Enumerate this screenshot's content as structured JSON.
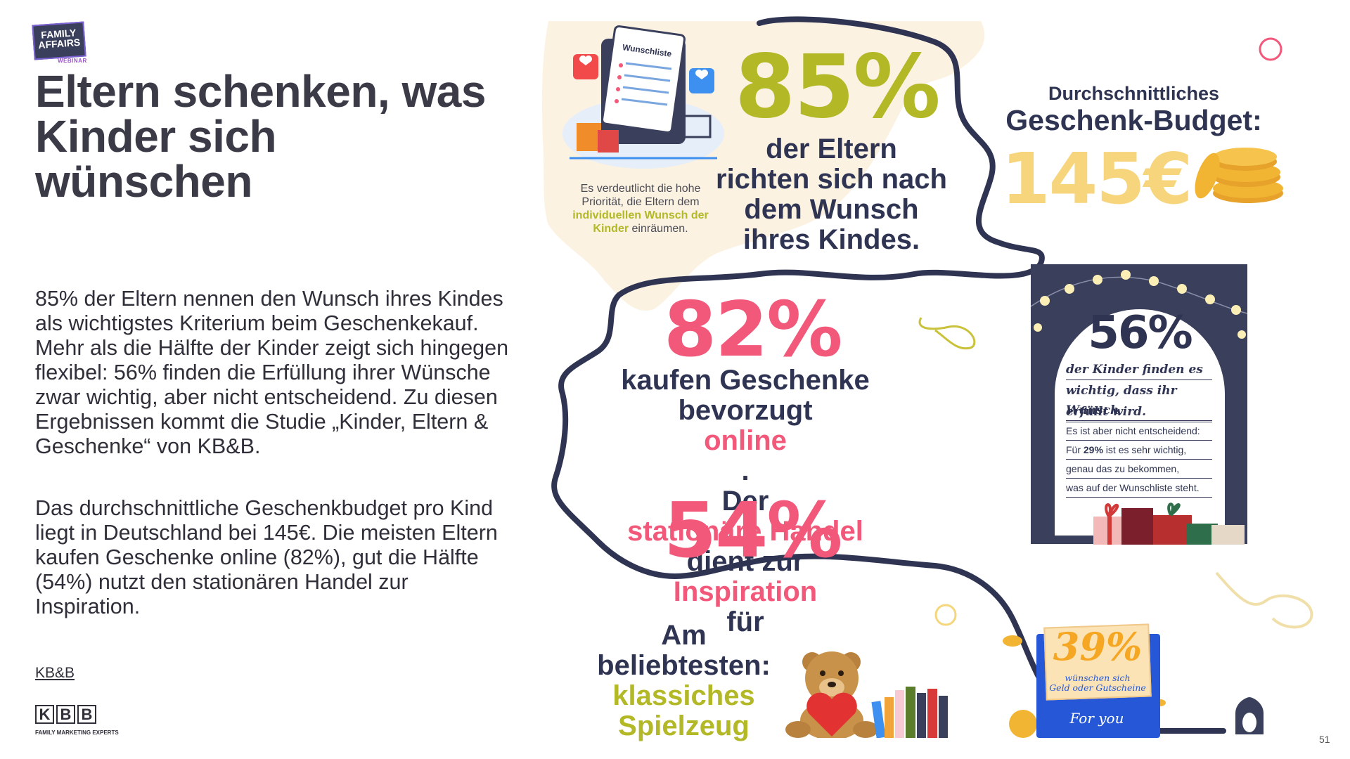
{
  "branding": {
    "family_affairs_line1": "FAMILY",
    "family_affairs_line2": "AFFAIRS",
    "family_affairs_sub": "WEBINAR",
    "kbb_letters": [
      "K",
      "B",
      "B"
    ],
    "kbb_tagline": "FAMILY MARKETING EXPERTS"
  },
  "title": {
    "line1": "Eltern schenken, was",
    "line2": "Kinder sich",
    "line3": "wünschen"
  },
  "body": {
    "paragraph1": "85% der Eltern nennen den Wunsch ihres Kindes als wichtigstes Kriterium beim Geschenkekauf. Mehr als die Hälfte der Kinder zeigt sich hingegen flexibel: 56% finden die Erfüllung ihrer Wünsche zwar wichtig, aber nicht entscheidend. Zu diesen Ergebnissen kommt die Studie „Kinder, Eltern & Geschenke“ von KB&B.",
    "paragraph2": "Das durchschnittliche Geschenkbudget pro Kind liegt in Deutschland bei 145€. Die meisten Eltern kaufen Geschenke online (82%), gut die Hälfte (54%) nutzt den stationären Handel zur Inspiration.",
    "source_link": "KB&B"
  },
  "infographic": {
    "wishlist_label": "Wunschliste",
    "note": {
      "part1": "Es verdeutlicht die hohe Priorität, die Eltern dem ",
      "highlight": "individuellen Wunsch der Kinder",
      "part2": " einräumen."
    },
    "stat85": {
      "value": "85%",
      "line1": "der Eltern",
      "line2": "richten sich nach",
      "line3": "dem Wunsch",
      "line4": "ihres Kindes."
    },
    "budget": {
      "line1": "Durchschnittliches",
      "line2": "Geschenk-Budget:",
      "value": "145€"
    },
    "stat82": {
      "value": "82%",
      "line1": "kaufen Geschenke",
      "line2_a": "bevorzugt ",
      "line2_b": "online",
      "line2_c": ".",
      "line3_a": "Der ",
      "line3_b": "stationäre Handel",
      "line4_a": "dient zur ",
      "line4_b": "Inspiration",
      "line4_c": " für",
      "value2": "54%"
    },
    "card56": {
      "value": "56%",
      "hand1": "der Kinder finden es",
      "hand2": "wichtig, dass ihr Wunsch",
      "hand3": "erfüllt wird.",
      "small1": "Es ist aber nicht entscheidend:",
      "small2_a": "Für ",
      "small2_b": "29%",
      "small2_c": " ist es sehr wichtig,",
      "small3": "genau das zu bekommen,",
      "small4": "was auf der Wunschliste steht."
    },
    "toys": {
      "line1": "Am",
      "line2": "beliebtesten:",
      "line3": "klassiches",
      "line4": "Spielzeug"
    },
    "stat39": {
      "value": "39%",
      "line1": "wünschen sich",
      "line2": "Geld oder Gutscheine",
      "envelope_text": "For you"
    }
  },
  "page_number": "51",
  "colors": {
    "navy": "#2f3453",
    "olive": "#b3b827",
    "pink": "#f2587a",
    "gold": "#f6d57c",
    "blue": "#2557d6"
  }
}
